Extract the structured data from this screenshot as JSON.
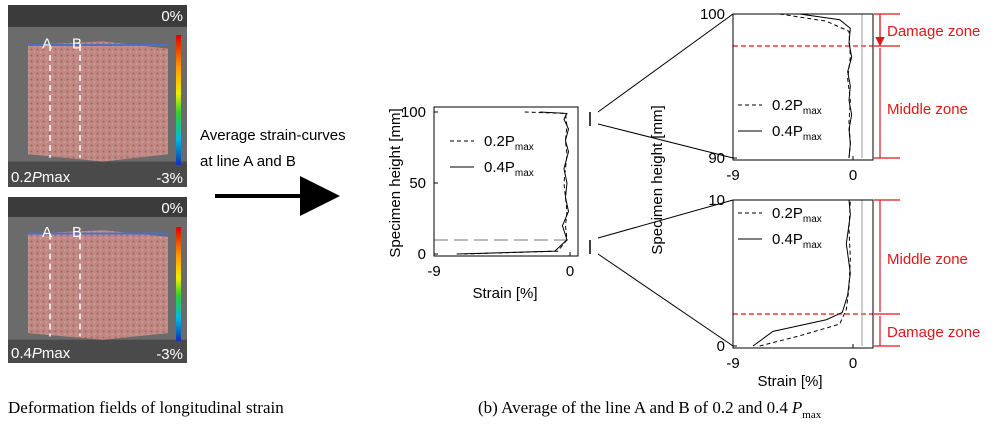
{
  "field_images": [
    {
      "line_labels": [
        "A",
        "B"
      ],
      "scale_top": "0%",
      "scale_bottom": "-3%",
      "load": {
        "number": "0.2",
        "symbol": "P",
        "suffix": "max"
      }
    },
    {
      "line_labels": [
        "A",
        "B"
      ],
      "scale_top": "0%",
      "scale_bottom": "-3%",
      "load": {
        "number": "0.4",
        "symbol": "P",
        "suffix": "max"
      }
    }
  ],
  "left_caption": "Deformation fields of longitudinal strain",
  "arrow_text": [
    "Average strain-curves",
    "at line A and B"
  ],
  "chart_data": [
    {
      "type": "line",
      "ylabel": "Specimen height [mm]",
      "xlabel": "Strain [%]",
      "xlim": [
        -9,
        0
      ],
      "xticks": [
        -9,
        0
      ],
      "ylim": [
        0,
        100
      ],
      "yticks": [
        0,
        50,
        100
      ],
      "series": [
        {
          "name": "0.2P",
          "name_sub": "max",
          "color": "#000",
          "dash": true,
          "x": [
            -3,
            -0.3,
            -0.2,
            -0.3,
            -0.2,
            -0.4,
            -0.2,
            -0.3,
            -0.2,
            -0.8,
            -7
          ],
          "y": [
            100,
            99,
            90,
            80,
            70,
            50,
            30,
            20,
            10,
            2,
            0
          ]
        },
        {
          "name": "0.4P",
          "name_sub": "max",
          "color": "#000",
          "dash": false,
          "x": [
            -2,
            -0.2,
            -0.4,
            -0.1,
            -0.3,
            -0.1,
            -0.4,
            -0.2,
            -0.3,
            -0.1,
            -0.5,
            -0.2,
            -1,
            -7.5
          ],
          "y": [
            100,
            99,
            95,
            88,
            80,
            72,
            60,
            50,
            40,
            30,
            20,
            10,
            2,
            0
          ]
        }
      ]
    },
    {
      "type": "line",
      "ylabel": "Specimen height [mm]",
      "xlim": [
        -9,
        0
      ],
      "xticks": [
        -9,
        0
      ],
      "ylim": [
        90,
        100
      ],
      "yticks": [
        90,
        100
      ],
      "series": [
        {
          "name": "0.2P",
          "name_sub": "max",
          "color": "#000",
          "dash": true,
          "x": [
            -5.5,
            -2,
            -0.3,
            -0.2,
            -0.4,
            -0.2,
            -0.3,
            -0.2,
            -0.3
          ],
          "y": [
            100,
            99.5,
            98.8,
            97,
            95.5,
            94,
            92.5,
            91,
            90
          ]
        },
        {
          "name": "0.4P",
          "name_sub": "max",
          "color": "#000",
          "dash": false,
          "x": [
            -4,
            -1,
            -0.2,
            -0.3,
            -0.1,
            -0.4,
            -0.2,
            -0.3,
            -0.1,
            -0.3,
            -0.2,
            -0.3
          ],
          "y": [
            100,
            99.6,
            99,
            98,
            97,
            96,
            95,
            94,
            93,
            92,
            91,
            90
          ]
        }
      ]
    },
    {
      "type": "line",
      "xlabel": "Strain [%]",
      "xlim": [
        -9,
        0
      ],
      "xticks": [
        -9,
        0
      ],
      "ylim": [
        0,
        10
      ],
      "yticks": [
        0,
        10
      ],
      "series": [
        {
          "name": "0.2P",
          "name_sub": "max",
          "color": "#000",
          "dash": true,
          "x": [
            -7,
            -4,
            -1,
            -0.5,
            -0.3,
            -0.2,
            -0.3,
            -0.2
          ],
          "y": [
            0,
            0.7,
            1.5,
            2.5,
            4,
            6,
            8,
            10
          ]
        },
        {
          "name": "0.4P",
          "name_sub": "max",
          "color": "#000",
          "dash": false,
          "x": [
            -7.5,
            -6,
            -2,
            -0.8,
            -0.4,
            -0.2,
            -0.5,
            -0.2,
            -0.3
          ],
          "y": [
            0,
            1,
            1.8,
            2.3,
            3.5,
            5,
            7,
            9,
            10
          ]
        }
      ]
    }
  ],
  "zones": [
    "Damage zone",
    "Middle zone",
    "Middle zone",
    "Damage zone"
  ],
  "right_caption": {
    "text": "(b) Average of the line A and B of 0.2 and 0.4",
    "symbol": "P",
    "sub": "max"
  }
}
